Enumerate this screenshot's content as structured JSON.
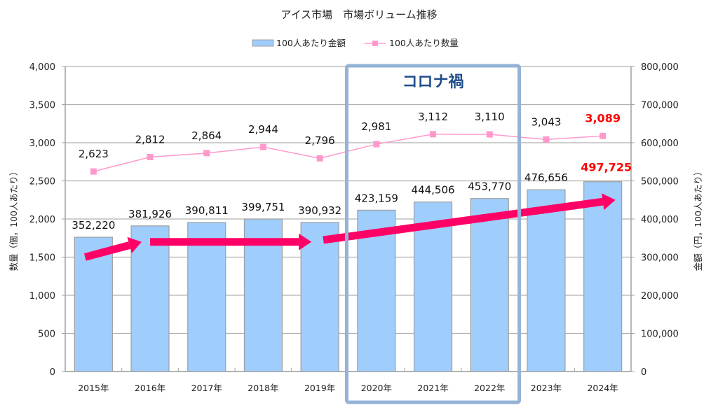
{
  "chart_data": {
    "type": "bar",
    "title": "アイス市場　市場ボリューム推移",
    "categories": [
      "2015年",
      "2016年",
      "2017年",
      "2018年",
      "2019年",
      "2020年",
      "2021年",
      "2022年",
      "2023年",
      "2024年"
    ],
    "series": [
      {
        "name": "100人あたり金額",
        "type": "bar",
        "axis": "right",
        "color": "#9fcdfc",
        "border_color": "#a0a0a0",
        "values": [
          352220,
          381926,
          390811,
          399751,
          390932,
          423159,
          444506,
          453770,
          476656,
          497725
        ],
        "labels": [
          "352,220",
          "381,926",
          "390,811",
          "399,751",
          "390,932",
          "423,159",
          "444,506",
          "453,770",
          "476,656",
          "497,725"
        ],
        "highlight_index": 9
      },
      {
        "name": "100人あたり数量",
        "type": "line",
        "axis": "left",
        "color": "#ff99cc",
        "marker": "square",
        "values": [
          2623,
          2812,
          2864,
          2944,
          2796,
          2981,
          3112,
          3110,
          3043,
          3089
        ],
        "labels": [
          "2,623",
          "2,812",
          "2,864",
          "2,944",
          "2,796",
          "2,981",
          "3,112",
          "3,110",
          "3,043",
          "3,089"
        ],
        "highlight_index": 9
      }
    ],
    "y_left": {
      "label": "数量（個，100人あたり）",
      "range": [
        0,
        4000
      ],
      "ticks": [
        "0",
        "500",
        "1,000",
        "1,500",
        "2,000",
        "2,500",
        "3,000",
        "3,500",
        "4,000"
      ]
    },
    "y_right": {
      "label": "金額（円，100人あたり）",
      "range": [
        0,
        800000
      ],
      "ticks": [
        "0",
        "100,000",
        "200,000",
        "300,000",
        "400,000",
        "500,000",
        "600,000",
        "700,000",
        "800,000"
      ]
    },
    "grid": true,
    "legend_position": "top-center",
    "highlight_color": "#ff0000",
    "annotations": {
      "covid_box": {
        "label": "コロナ禍",
        "from_category": "2020年",
        "to_category": "2022年",
        "color": "#95b3d7",
        "text_color": "#1f4e8c"
      },
      "trend_arrows": {
        "color": "#ff0066",
        "arrows": [
          {
            "from": [
              "2015年",
              300000
            ],
            "to": [
              "2016年",
              340000
            ]
          },
          {
            "from": [
              "2016年",
              340000
            ],
            "to": [
              "2019年",
              340000
            ]
          },
          {
            "from": [
              "2019年",
              345000
            ],
            "to": [
              "2024年",
              450000
            ]
          }
        ]
      }
    }
  }
}
